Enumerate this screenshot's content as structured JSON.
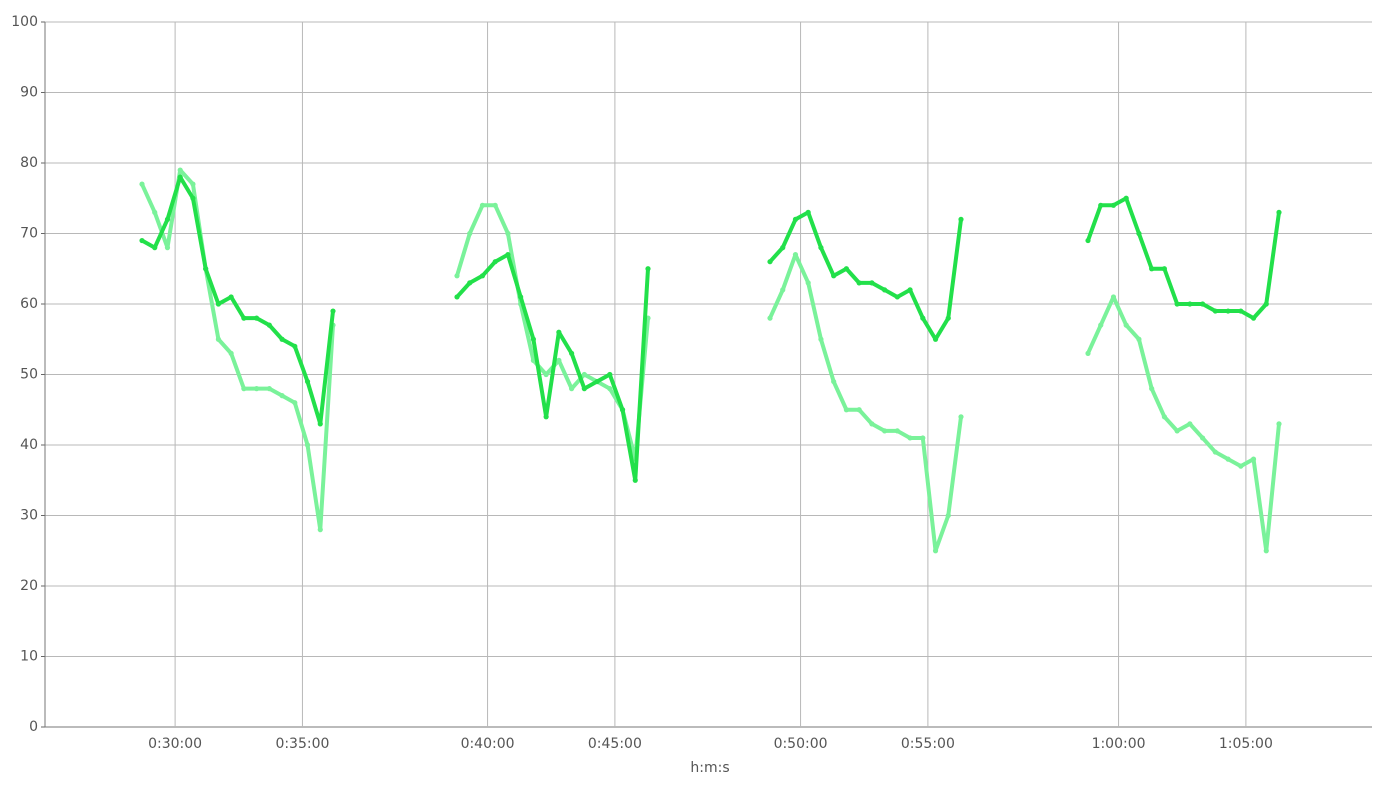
{
  "chart_data": {
    "type": "scatter",
    "xlabel": "h:m:s",
    "ylim": [
      0,
      100
    ],
    "yticks": [
      0,
      10,
      20,
      30,
      40,
      50,
      60,
      70,
      80,
      90,
      100
    ],
    "grid": true,
    "panels": [
      {
        "xlim": [
          28.7,
          36.2
        ],
        "xticks": [
          {
            "value": 30,
            "label": "0:30:00"
          },
          {
            "value": 35,
            "label": "0:35:00"
          }
        ],
        "x": [
          28.7,
          29.2,
          29.7,
          30.2,
          30.7,
          31.2,
          31.7,
          32.2,
          32.7,
          33.2,
          33.7,
          34.2,
          34.7,
          35.2,
          35.7,
          36.2
        ]
      },
      {
        "xlim": [
          38.8,
          46.3
        ],
        "xticks": [
          {
            "value": 40,
            "label": "0:40:00"
          },
          {
            "value": 45,
            "label": "0:45:00"
          }
        ],
        "x": [
          38.8,
          39.3,
          39.8,
          40.3,
          40.8,
          41.3,
          41.8,
          42.3,
          42.8,
          43.3,
          43.8,
          44.3,
          44.8,
          45.3,
          45.8,
          46.3
        ]
      },
      {
        "xlim": [
          48.8,
          56.3
        ],
        "xticks": [
          {
            "value": 50,
            "label": "0:50:00"
          },
          {
            "value": 55,
            "label": "0:55:00"
          }
        ],
        "x": [
          48.8,
          49.3,
          49.8,
          50.3,
          50.8,
          51.3,
          51.8,
          52.3,
          52.8,
          53.3,
          53.8,
          54.3,
          54.8,
          55.3,
          55.8,
          56.3
        ]
      },
      {
        "xlim": [
          58.8,
          66.3
        ],
        "xticks": [
          {
            "value": 60,
            "label": "1:00:00"
          },
          {
            "value": 65,
            "label": "1:05:00"
          }
        ],
        "x": [
          58.8,
          59.3,
          59.8,
          60.3,
          60.8,
          61.3,
          61.8,
          62.3,
          62.8,
          63.3,
          63.8,
          64.3,
          64.8,
          65.3,
          65.8,
          66.3
        ]
      }
    ],
    "series": [
      {
        "color": "#7af29a",
        "values": [
          [
            77,
            73,
            68,
            79,
            77,
            65,
            55,
            53,
            48,
            48,
            48,
            47,
            46,
            40,
            28,
            57
          ],
          [
            64,
            70,
            74,
            74,
            70,
            60,
            52,
            50,
            52,
            48,
            50,
            49,
            48,
            45,
            38,
            58
          ],
          [
            58,
            62,
            67,
            63,
            55,
            49,
            45,
            45,
            43,
            42,
            42,
            41,
            41,
            25,
            30,
            44
          ],
          [
            53,
            57,
            61,
            57,
            55,
            48,
            44,
            42,
            43,
            41,
            39,
            38,
            37,
            38,
            25,
            43
          ]
        ]
      },
      {
        "color": "#22e04a",
        "values": [
          [
            69,
            68,
            72,
            78,
            75,
            65,
            60,
            61,
            58,
            58,
            57,
            55,
            54,
            49,
            43,
            59
          ],
          [
            61,
            63,
            64,
            66,
            67,
            61,
            55,
            44,
            56,
            53,
            48,
            49,
            50,
            45,
            35,
            65
          ],
          [
            66,
            68,
            72,
            73,
            68,
            64,
            65,
            63,
            63,
            62,
            61,
            62,
            58,
            55,
            58,
            72
          ],
          [
            69,
            74,
            74,
            75,
            70,
            65,
            65,
            60,
            60,
            60,
            59,
            59,
            59,
            58,
            60,
            73
          ]
        ]
      }
    ]
  }
}
